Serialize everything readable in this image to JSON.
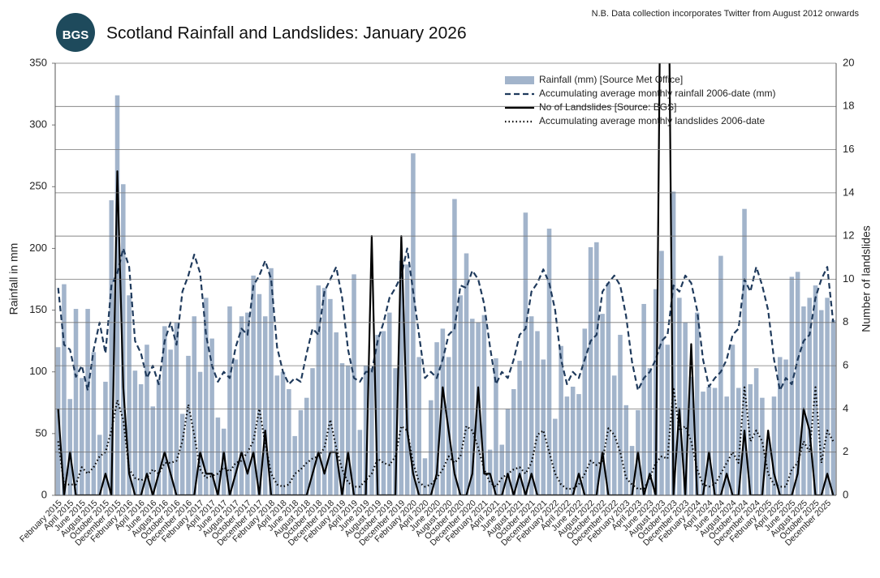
{
  "note": "N.B. Data collection incorporates Twitter from August 2012 onwards",
  "logo_text": "BGS",
  "chart_data": {
    "type": "combo",
    "title": "Scotland Rainfall and Landslides: January 2026",
    "y_label": "Rainfall in mm",
    "y2_label": "Number of landslides",
    "ylim": [
      0,
      350
    ],
    "yticks": [
      0,
      50,
      100,
      150,
      200,
      250,
      300,
      350
    ],
    "y2lim": [
      0,
      20
    ],
    "y2ticks": [
      0,
      2,
      4,
      6,
      8,
      10,
      12,
      14,
      16,
      18,
      20
    ],
    "grid": true,
    "legend": "top-right",
    "categories": [
      "February 2015",
      null,
      "April 2015",
      null,
      "June 2015",
      null,
      "August 2015",
      null,
      "October 2015",
      null,
      "December 2015",
      null,
      "February 2016",
      null,
      "April 2016",
      null,
      "June 2016",
      null,
      "August 2016",
      null,
      "October 2016",
      null,
      "December 2016",
      null,
      "February 2017",
      null,
      "April 2017",
      null,
      "June 2017",
      null,
      "August 2017",
      null,
      "October 2017",
      null,
      "December 2017",
      null,
      "February 2018",
      null,
      "April 2018",
      null,
      "June 2018",
      null,
      "August 2018",
      null,
      "October 2018",
      null,
      "December 2018",
      null,
      "February 2019",
      null,
      "April 2019",
      null,
      "June 2019",
      null,
      "August 2019",
      null,
      "October 2019",
      null,
      "December 2019",
      null,
      "February 2020",
      null,
      "April 2020",
      null,
      "June 2020",
      null,
      "August 2020",
      null,
      "October 2020",
      null,
      "December 2020",
      null,
      "February 2021",
      null,
      "April 2021",
      null,
      "June 2021",
      null,
      "August 2021",
      null,
      "October 2021",
      null,
      "December 2021",
      null,
      "February 2022",
      null,
      "April 2022",
      null,
      "June 2022",
      null,
      "August 2022",
      null,
      "October 2022",
      null,
      "December 2022",
      null,
      "February 2023",
      null,
      "April 2023",
      null,
      "June 2023",
      null,
      "August 2023",
      null,
      "October 2023",
      null,
      "December 2023",
      null,
      "February 2024",
      null,
      "April 2024",
      null,
      "June 2024",
      null,
      "August 2024",
      null,
      "October 2024",
      null,
      "December 2024",
      null,
      "February 2025",
      null,
      "April 2025",
      null,
      "June 2025",
      null,
      "August 2025",
      null,
      "October 2025",
      null,
      "December 2025",
      null
    ],
    "series": [
      {
        "name": "Rainfall (mm) [Source Met Office]",
        "kind": "bar",
        "color": "#a2b4cb",
        "values": [
          120,
          171,
          78,
          151,
          95,
          151,
          116,
          49,
          92,
          239,
          324,
          252,
          162,
          101,
          90,
          122,
          72,
          93,
          137,
          118,
          140,
          66,
          113,
          145,
          100,
          160,
          127,
          63,
          54,
          153,
          110,
          145,
          148,
          178,
          163,
          145,
          184,
          97,
          100,
          86,
          48,
          69,
          79,
          103,
          170,
          168,
          159,
          132,
          107,
          105,
          179,
          53,
          105,
          103,
          130,
          133,
          148,
          103,
          190,
          187,
          277,
          112,
          30,
          77,
          124,
          135,
          112,
          240,
          162,
          196,
          143,
          140,
          146,
          37,
          111,
          41,
          70,
          86,
          109,
          229,
          145,
          133,
          110,
          216,
          62,
          121,
          80,
          88,
          82,
          135,
          201,
          205,
          147,
          172,
          97,
          130,
          73,
          40,
          69,
          155,
          103,
          167,
          198,
          122,
          246,
          160,
          140,
          96,
          148,
          84,
          88,
          87,
          194,
          80,
          122,
          87,
          232,
          90,
          103,
          79,
          45,
          80,
          112,
          110,
          177,
          181,
          153,
          160,
          170,
          150,
          160,
          142
        ]
      },
      {
        "name": "Accumulating average monthly rainfall 2006-date (mm)",
        "kind": "line",
        "line_style": "dashed",
        "color": "#1f3a5c",
        "values": [
          168,
          122,
          118,
          96,
          105,
          85,
          118,
          140,
          115,
          170,
          180,
          200,
          185,
          125,
          115,
          95,
          105,
          90,
          125,
          140,
          122,
          165,
          178,
          195,
          180,
          130,
          105,
          92,
          100,
          95,
          120,
          135,
          130,
          170,
          178,
          190,
          175,
          120,
          100,
          90,
          95,
          92,
          115,
          135,
          130,
          165,
          175,
          185,
          160,
          118,
          95,
          92,
          100,
          100,
          125,
          140,
          160,
          168,
          178,
          200,
          165,
          130,
          95,
          100,
          95,
          110,
          130,
          135,
          170,
          168,
          182,
          175,
          155,
          120,
          90,
          100,
          95,
          110,
          130,
          135,
          165,
          172,
          183,
          172,
          150,
          110,
          90,
          100,
          95,
          110,
          125,
          130,
          165,
          172,
          178,
          170,
          145,
          108,
          85,
          95,
          100,
          110,
          125,
          130,
          170,
          165,
          178,
          172,
          150,
          110,
          88,
          95,
          100,
          110,
          130,
          135,
          175,
          165,
          185,
          170,
          150,
          110,
          85,
          95,
          90,
          110,
          125,
          130,
          160,
          175,
          185,
          140
        ]
      },
      {
        "name": "No of Landslides [Source: BGS]",
        "kind": "line",
        "line_style": "solid",
        "color": "#000000",
        "axis": "y2",
        "values": [
          4,
          0,
          2,
          0,
          0,
          0,
          0,
          0,
          1,
          0,
          15,
          5,
          1,
          0,
          0,
          1,
          0,
          1,
          2,
          1,
          0,
          0,
          0,
          0,
          2,
          1,
          1,
          0,
          2,
          0,
          1,
          2,
          1,
          2,
          0,
          3,
          0,
          0,
          0,
          0,
          0,
          0,
          0,
          1,
          2,
          1,
          2,
          2,
          0,
          2,
          0,
          0,
          0,
          12,
          0,
          0,
          0,
          0,
          12,
          3,
          1,
          0,
          0,
          0,
          1,
          5,
          3,
          1,
          0,
          0,
          1,
          5,
          1,
          1,
          0,
          0,
          1,
          0,
          1,
          0,
          1,
          0,
          0,
          0,
          0,
          0,
          0,
          0,
          1,
          0,
          0,
          0,
          2,
          0,
          0,
          0,
          0,
          0,
          2,
          0,
          1,
          0,
          30,
          30,
          0,
          4,
          0,
          7,
          0,
          0,
          2,
          0,
          0,
          1,
          0,
          0,
          3,
          0,
          0,
          0,
          3,
          1,
          0,
          0,
          0,
          1,
          4,
          3,
          0,
          0,
          1,
          0
        ]
      },
      {
        "name": "Accumulating average monthly landslides 2006-date",
        "kind": "line",
        "line_style": "dotted",
        "color": "#000000",
        "axis": "y2",
        "values": [
          2.5,
          0.5,
          0.5,
          0.5,
          1.3,
          1,
          1.3,
          1.8,
          2,
          3,
          4.4,
          3.5,
          1.2,
          0.8,
          0.7,
          0.8,
          1.2,
          1,
          1.5,
          1.5,
          1.6,
          2.5,
          4.2,
          2.8,
          1.2,
          0.8,
          0.9,
          1,
          1.3,
          1.1,
          1.5,
          1.6,
          2,
          2.5,
          4,
          2.4,
          1,
          0.5,
          0.4,
          0.5,
          1,
          1.2,
          1.5,
          1.7,
          1.8,
          2.2,
          3.5,
          2.2,
          1.2,
          0.6,
          0.4,
          0.4,
          0.7,
          1,
          1.7,
          1.5,
          1.4,
          1.8,
          3.2,
          3,
          1.5,
          0.6,
          0.4,
          0.5,
          0.8,
          1.2,
          1.8,
          1.5,
          1.8,
          3.2,
          3,
          2.2,
          1.2,
          0.6,
          0.4,
          0.8,
          1,
          1.2,
          1.3,
          1,
          1.5,
          2.8,
          3,
          2,
          1,
          0.5,
          0.3,
          0.3,
          0.5,
          1,
          1.6,
          1.4,
          1.6,
          3.1,
          2.8,
          2,
          0.8,
          0.5,
          0.3,
          0.3,
          0.8,
          1.5,
          1.8,
          1.7,
          5,
          3,
          3.2,
          2.5,
          1.2,
          0.5,
          0.4,
          0.5,
          1,
          1.5,
          2,
          1.5,
          5,
          2.5,
          3,
          2.5,
          1,
          0.5,
          0.4,
          0.4,
          1.2,
          1.5,
          2.5,
          2,
          5,
          1.5,
          3,
          2.5
        ]
      }
    ]
  }
}
